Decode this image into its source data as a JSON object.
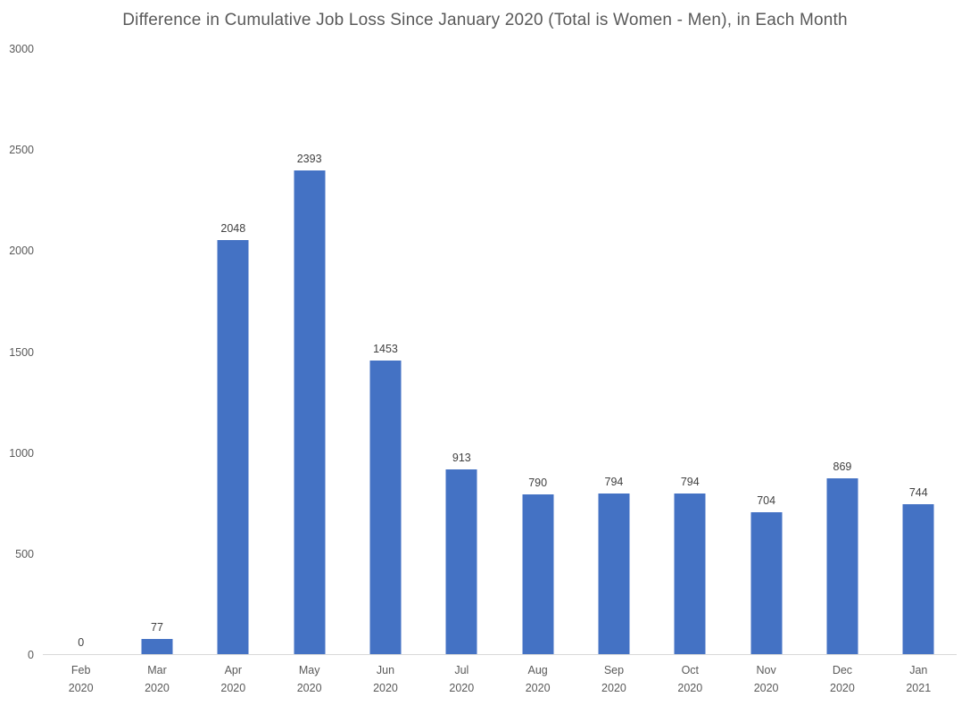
{
  "chart_data": {
    "type": "bar",
    "title": "Difference in Cumulative Job Loss Since January 2020 (Total is Women - Men), in Each Month",
    "categories": [
      "Feb 2020",
      "Mar 2020",
      "Apr 2020",
      "May 2020",
      "Jun 2020",
      "Jul 2020",
      "Aug 2020",
      "Sep 2020",
      "Oct 2020",
      "Nov 2020",
      "Dec 2020",
      "Jan 2021"
    ],
    "values": [
      0,
      77,
      2048,
      2393,
      1453,
      913,
      790,
      794,
      794,
      704,
      869,
      744
    ],
    "xlabel": "",
    "ylabel": "",
    "ylim": [
      0,
      3000
    ],
    "yticks": [
      0,
      500,
      1000,
      1500,
      2000,
      2500,
      3000
    ],
    "grid": false,
    "legend": false,
    "data_labels_shown": true
  },
  "colors": {
    "bar": "#4472C4",
    "title_text": "#595959",
    "axis_text": "#595959",
    "value_label_text": "#404040",
    "axis_line": "#D9D9D9",
    "background": "#FFFFFF"
  }
}
